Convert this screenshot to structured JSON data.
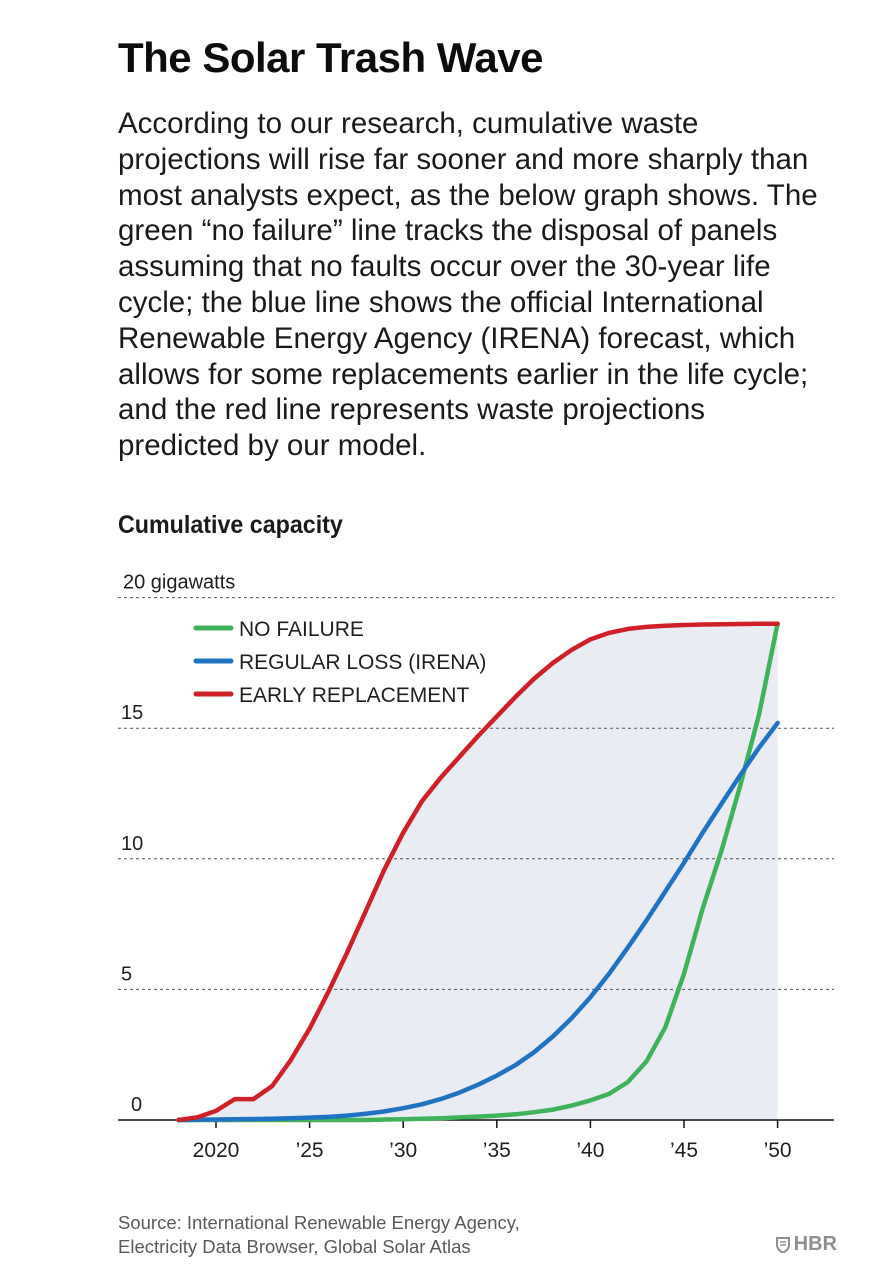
{
  "header": {
    "title": "The Solar Trash Wave",
    "intro_lines": [
      "According to our research, cumulative waste",
      "projections will rise far sooner and more sharply than",
      "most analysts expect, as the below graph shows. The",
      "green “no failure” line tracks the disposal of panels",
      "assuming that no faults occur over the 30-year life",
      "cycle; the blue line shows the official International",
      "Renewable Energy Agency (IRENA) forecast, which",
      "allows for some replacements earlier in the life cycle;",
      "and the red line represents waste projections",
      "predicted by our model."
    ]
  },
  "chart_heading": "Cumulative capacity",
  "chart_data": {
    "type": "line",
    "title": "Cumulative capacity",
    "xlabel": "",
    "ylabel": "gigawatts",
    "xlim": [
      2016,
      2053
    ],
    "ylim": [
      0,
      20
    ],
    "grid": true,
    "legend_position": "top-left",
    "y_ticks": [
      {
        "value": 0,
        "label": "0"
      },
      {
        "value": 5,
        "label": "5"
      },
      {
        "value": 10,
        "label": "10"
      },
      {
        "value": 15,
        "label": "15"
      },
      {
        "value": 20,
        "label": "20 gigawatts"
      }
    ],
    "x_ticks": [
      {
        "value": 2020,
        "label": "2020"
      },
      {
        "value": 2025,
        "label": "’25"
      },
      {
        "value": 2030,
        "label": "’30"
      },
      {
        "value": 2035,
        "label": "’35"
      },
      {
        "value": 2040,
        "label": "’40"
      },
      {
        "value": 2045,
        "label": "’45"
      },
      {
        "value": 2050,
        "label": "’50"
      }
    ],
    "x": [
      2018,
      2019,
      2020,
      2021,
      2022,
      2023,
      2024,
      2025,
      2026,
      2027,
      2028,
      2029,
      2030,
      2031,
      2032,
      2033,
      2034,
      2035,
      2036,
      2037,
      2038,
      2039,
      2040,
      2041,
      2042,
      2043,
      2044,
      2045,
      2046,
      2047,
      2048,
      2049,
      2050
    ],
    "series": [
      {
        "name": "NO FAILURE",
        "color": "#3fb35a",
        "values": [
          0,
          0,
          0,
          0,
          0,
          0,
          0,
          0,
          0,
          0,
          0,
          0.02,
          0.03,
          0.05,
          0.07,
          0.1,
          0.13,
          0.17,
          0.22,
          0.3,
          0.4,
          0.55,
          0.75,
          1.0,
          1.45,
          2.25,
          3.55,
          5.6,
          8.1,
          10.3,
          12.8,
          15.5,
          19.0
        ]
      },
      {
        "name": "REGULAR LOSS (IRENA)",
        "color": "#1f73c2",
        "values": [
          0,
          0.01,
          0.02,
          0.03,
          0.04,
          0.05,
          0.07,
          0.09,
          0.12,
          0.17,
          0.24,
          0.33,
          0.45,
          0.6,
          0.8,
          1.05,
          1.35,
          1.7,
          2.1,
          2.6,
          3.2,
          3.9,
          4.7,
          5.6,
          6.6,
          7.65,
          8.75,
          9.85,
          11.0,
          12.1,
          13.2,
          14.25,
          15.2
        ]
      },
      {
        "name": "EARLY REPLACEMENT",
        "color": "#cf2027",
        "values": [
          0,
          0.1,
          0.35,
          0.8,
          0.8,
          1.3,
          2.3,
          3.5,
          4.9,
          6.4,
          8.0,
          9.6,
          11.0,
          12.2,
          13.1,
          13.9,
          14.7,
          15.45,
          16.2,
          16.9,
          17.5,
          18.0,
          18.4,
          18.65,
          18.8,
          18.88,
          18.92,
          18.95,
          18.97,
          18.98,
          18.99,
          19.0,
          19.0
        ]
      }
    ],
    "shaded_area": {
      "between": [
        "EARLY REPLACEMENT",
        "baseline"
      ],
      "color": "#e9edf3"
    }
  },
  "footer": {
    "source_lines": [
      "Source: International Renewable Energy Agency,",
      "Electricity Data Browser, Global Solar Atlas"
    ],
    "brand": "HBR",
    "brand_icon": "hbr-shield-icon"
  }
}
